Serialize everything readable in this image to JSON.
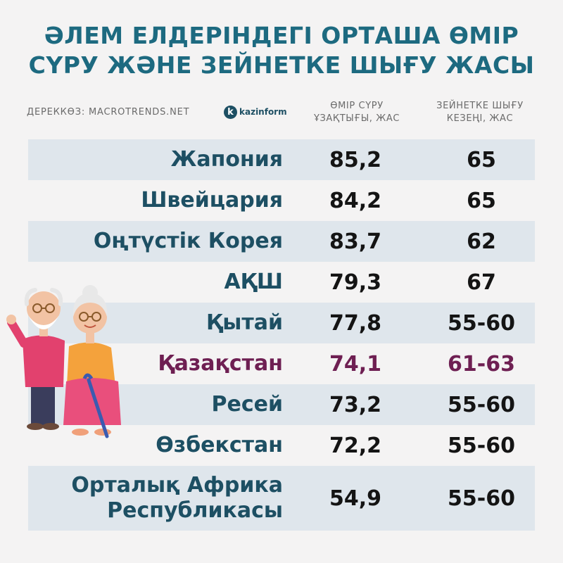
{
  "header": {
    "title_line1": "ӘЛЕМ ЕЛДЕРІНДЕГІ ОРТАША ӨМІР",
    "title_line2": "СҮРУ ЖӘНЕ ЗЕЙНЕТКЕ ШЫҒУ ЖАСЫ",
    "source": "ДЕРЕККӨЗ: MACROTRENDS.NET",
    "logo_letter": "k",
    "logo_text": "kazinform"
  },
  "columns": {
    "life_line1": "ӨМІР СҮРУ",
    "life_line2": "ҰЗАҚТЫҒЫ, ЖАС",
    "retire_line1": "ЗЕЙНЕТКЕ ШЫҒУ",
    "retire_line2": "КЕЗЕҢІ, ЖАС"
  },
  "rows": [
    {
      "country": "Жапония",
      "life": "85,2",
      "retire": "65"
    },
    {
      "country": "Швейцария",
      "life": "84,2",
      "retire": "65"
    },
    {
      "country": "Оңтүстік Корея",
      "life": "83,7",
      "retire": "62"
    },
    {
      "country": "АҚШ",
      "life": "79,3",
      "retire": "67"
    },
    {
      "country": "Қытай",
      "life": "77,8",
      "retire": "55-60"
    },
    {
      "country": "Қазақстан",
      "life": "74,1",
      "retire": "61-63"
    },
    {
      "country": "Ресей",
      "life": "73,2",
      "retire": "55-60"
    },
    {
      "country": "Өзбекстан",
      "life": "72,2",
      "retire": "55-60"
    },
    {
      "country_line1": "Орталық Африка",
      "country_line2": "Республикасы",
      "life": "54,9",
      "retire": "55-60"
    }
  ],
  "colors": {
    "title": "#1d6a80",
    "country_text": "#1d4f63",
    "highlight": "#6e1f52",
    "row_alt": "#dfe6ec"
  },
  "illustration": "elderly-couple-icon"
}
